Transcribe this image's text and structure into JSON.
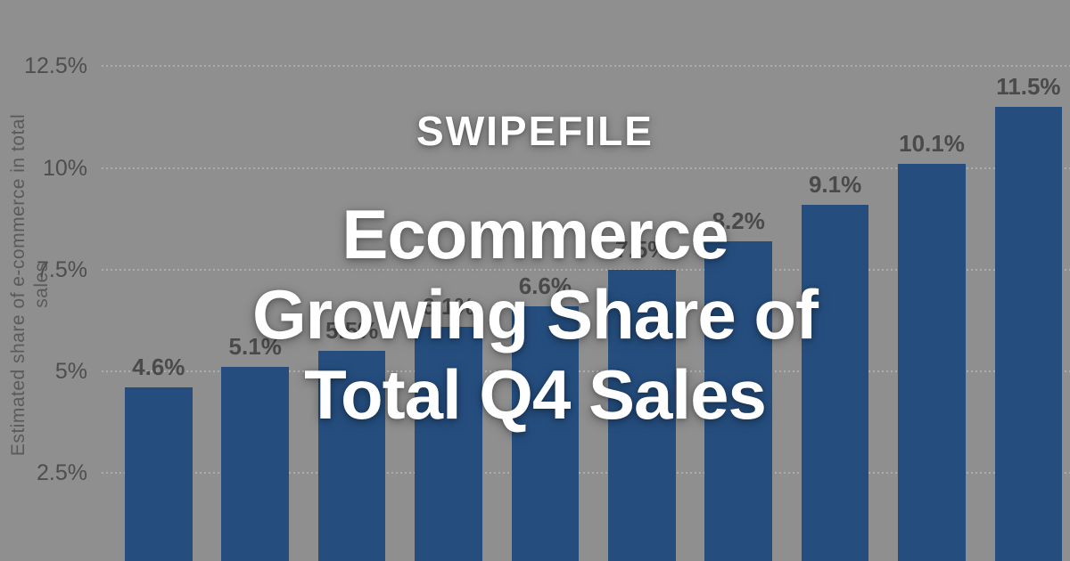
{
  "overlay": {
    "brand": "SWIPEFILE",
    "title_full": "Ecommerce Growing Share of Total Q4 Sales",
    "title_lines": [
      "Ecommerce",
      "Growing Share of",
      "Total Q4 Sales"
    ],
    "text_color": "#ffffff"
  },
  "chart_data": {
    "type": "bar",
    "title": "",
    "xlabel": "",
    "ylabel": "Estimated share of e-commerce in total sales",
    "values": [
      4.6,
      5.1,
      5.5,
      6.1,
      6.6,
      7.5,
      8.2,
      9.1,
      10.1,
      11.5
    ],
    "bar_labels": [
      "4.6%",
      "5.1%",
      "5.5%",
      "6.1%",
      "6.6%",
      "7.5%",
      "8.2%",
      "9.1%",
      "10.1%",
      "11.5%"
    ],
    "yticks": [
      {
        "value": 2.5,
        "label": "2.5%"
      },
      {
        "value": 5,
        "label": "5%"
      },
      {
        "value": 7.5,
        "label": "7.5%"
      },
      {
        "value": 10,
        "label": "10%"
      },
      {
        "value": 12.5,
        "label": "12.5%"
      }
    ],
    "ylim": [
      0,
      14
    ],
    "grid": "dotted-horizontal",
    "legend": "none",
    "x_axis_labels_visible": false,
    "colors": {
      "bar": "#254e7f",
      "grid": "#adadad",
      "tick_label": "#4e4e4e",
      "data_label": "#4a4a4a",
      "axis_label": "#5a5a5a",
      "background": "#8f8f8f"
    }
  }
}
